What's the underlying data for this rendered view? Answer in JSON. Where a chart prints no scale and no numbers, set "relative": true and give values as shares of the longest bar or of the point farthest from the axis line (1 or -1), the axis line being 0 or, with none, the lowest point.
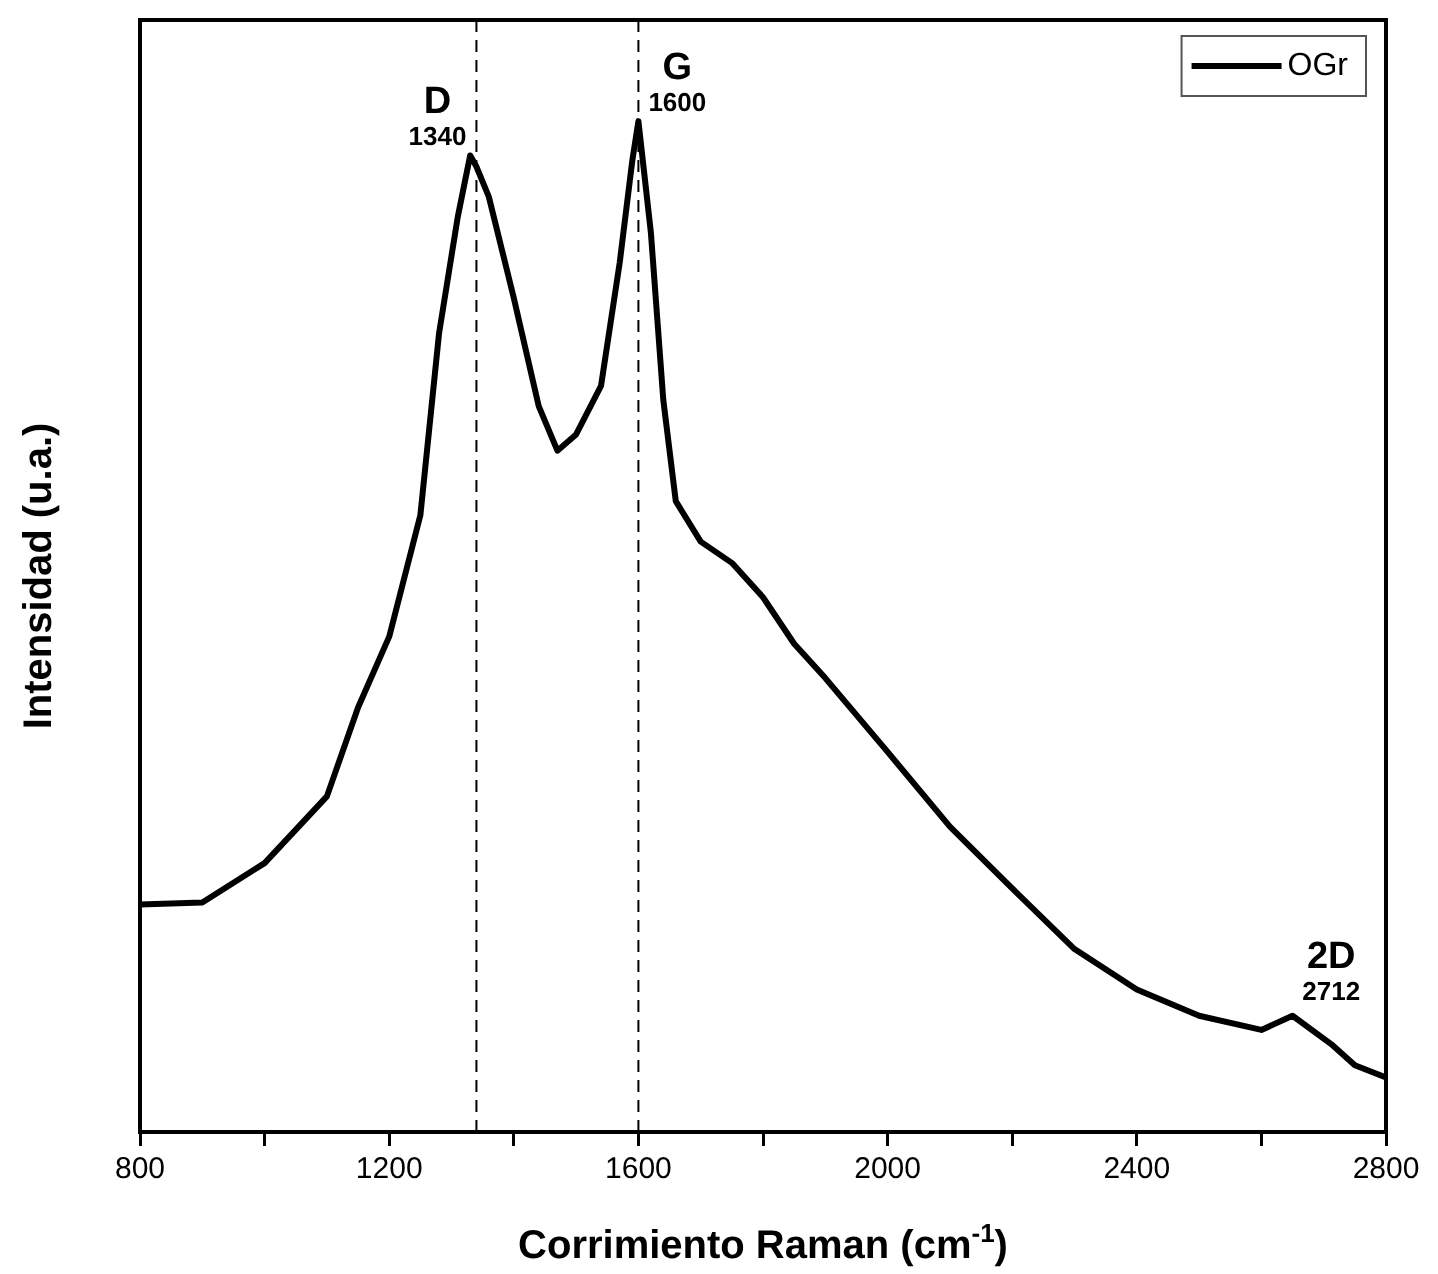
{
  "chart_data": {
    "type": "line",
    "xlabel": "Corrimiento Raman (cm$^{-1}$)",
    "ylabel": "Intensidad (u.a.)",
    "relative": true,
    "xlim": [
      800,
      2800
    ],
    "xticks": [
      800,
      {
        "value": 1000,
        "label": null
      },
      1200,
      {
        "value": 1400,
        "label": null
      },
      1600,
      {
        "value": 1800,
        "label": null
      },
      2000,
      {
        "value": 2200,
        "label": null
      },
      2400,
      {
        "value": 2600,
        "label": null
      },
      2800
    ],
    "series": [
      {
        "name": "OGr",
        "color": "#000000",
        "x": [
          800,
          900,
          1000,
          1100,
          1150,
          1200,
          1250,
          1280,
          1310,
          1330,
          1340,
          1360,
          1400,
          1440,
          1470,
          1500,
          1540,
          1570,
          1590,
          1600,
          1620,
          1640,
          1660,
          1700,
          1750,
          1800,
          1850,
          1900,
          2000,
          2100,
          2200,
          2300,
          2400,
          2500,
          2600,
          2650,
          2712,
          2750,
          2800
        ],
        "values": [
          0.225,
          0.227,
          0.266,
          0.332,
          0.42,
          0.49,
          0.61,
          0.79,
          0.905,
          0.966,
          0.955,
          0.925,
          0.825,
          0.718,
          0.674,
          0.69,
          0.738,
          0.86,
          0.96,
          1.0,
          0.89,
          0.724,
          0.624,
          0.584,
          0.563,
          0.529,
          0.483,
          0.449,
          0.376,
          0.302,
          0.241,
          0.181,
          0.141,
          0.115,
          0.101,
          0.115,
          0.087,
          0.066,
          0.054
        ]
      }
    ],
    "ref_lines": [
      {
        "axis": "x",
        "value": 1340,
        "line_style": "dashed"
      },
      {
        "axis": "x",
        "value": 1600,
        "line_style": "dashed"
      }
    ],
    "annotations": [
      {
        "text": "D",
        "x": 1340,
        "y": 0.966
      },
      {
        "text": "1340",
        "x": 1340,
        "y": 0.966
      },
      {
        "text": "G",
        "x": 1600,
        "y": 1.0
      },
      {
        "text": "1600",
        "x": 1600,
        "y": 1.0
      },
      {
        "text": "2D",
        "x": 2712,
        "y": 0.087
      },
      {
        "text": "2712",
        "x": 2712,
        "y": 0.087
      }
    ],
    "legend": "top right",
    "marker": "none",
    "line_style": "solid",
    "grid": false
  }
}
